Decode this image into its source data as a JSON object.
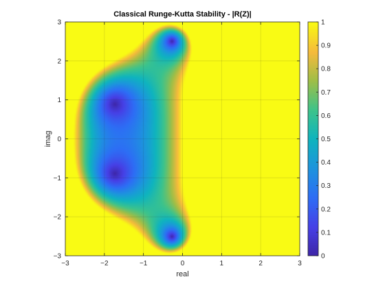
{
  "chart_data": {
    "type": "heatmap",
    "title": "Classical Runge-Kutta Stability - |R(Z)|",
    "xlabel": "real",
    "ylabel": "imag",
    "xlim": [
      -3,
      3
    ],
    "ylim": [
      -3,
      3
    ],
    "xticks": [
      -3,
      -2,
      -1,
      0,
      1,
      2,
      3
    ],
    "yticks": [
      -3,
      -2,
      -1,
      0,
      1,
      2,
      3
    ],
    "grid": true,
    "function": "|1 + z + z^2/2 + z^3/6 + z^4/24| clipped at 1",
    "minima": [
      {
        "re": -1.73,
        "im": 0.89,
        "value": 0
      },
      {
        "re": -1.73,
        "im": -0.89,
        "value": 0
      },
      {
        "re": -0.27,
        "im": 2.5,
        "value": 0
      },
      {
        "re": -0.27,
        "im": -2.5,
        "value": 0
      }
    ],
    "colorbar": {
      "range": [
        0,
        1
      ],
      "ticks": [
        0,
        0.1,
        0.2,
        0.3,
        0.4,
        0.5,
        0.6,
        0.7,
        0.8,
        0.9,
        1
      ],
      "colormap": "parula"
    }
  }
}
